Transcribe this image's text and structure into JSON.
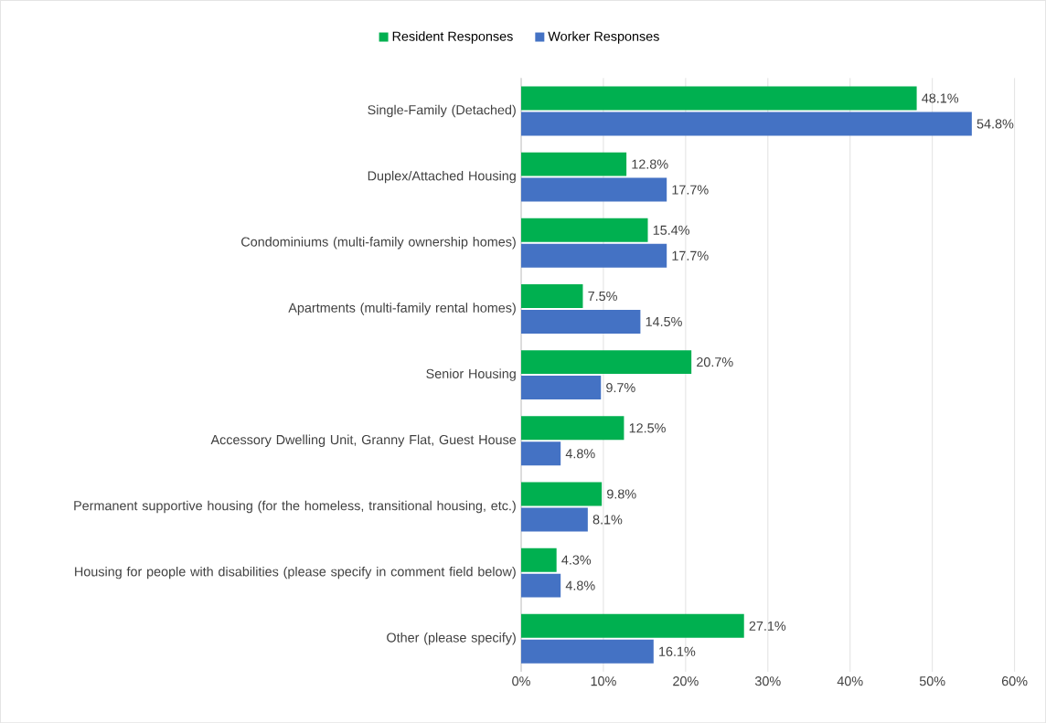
{
  "chart_data": {
    "type": "bar",
    "orientation": "horizontal",
    "categories": [
      "Single-Family (Detached)",
      "Duplex/Attached Housing",
      "Condominiums (multi-family ownership homes)",
      "Apartments (multi-family rental homes)",
      "Senior Housing",
      "Accessory Dwelling Unit, Granny Flat, Guest House",
      "Permanent supportive housing (for the homeless, transitional housing, etc.)",
      "Housing for people with disabilities (please specify in comment field below)",
      "Other (please specify)"
    ],
    "series": [
      {
        "name": "Resident Responses",
        "color": "#00b050",
        "values": [
          48.1,
          12.8,
          15.4,
          7.5,
          20.7,
          12.5,
          9.8,
          4.3,
          27.1
        ],
        "value_labels": [
          "48.1%",
          "12.8%",
          "15.4%",
          "7.5%",
          "20.7%",
          "12.5%",
          "9.8%",
          "4.3%",
          "27.1%"
        ]
      },
      {
        "name": "Worker Responses",
        "color": "#4472c4",
        "values": [
          54.8,
          17.7,
          17.7,
          14.5,
          9.7,
          4.8,
          8.1,
          4.8,
          16.1
        ],
        "value_labels": [
          "54.8%",
          "17.7%",
          "17.7%",
          "14.5%",
          "9.7%",
          "4.8%",
          "8.1%",
          "4.8%",
          "16.1%"
        ]
      }
    ],
    "xlim": [
      0,
      60
    ],
    "xticks": [
      {
        "value": 0,
        "label": "0%"
      },
      {
        "value": 10,
        "label": "10%"
      },
      {
        "value": 20,
        "label": "20%"
      },
      {
        "value": 30,
        "label": "30%"
      },
      {
        "value": 40,
        "label": "40%"
      },
      {
        "value": 50,
        "label": "50%"
      },
      {
        "value": 60,
        "label": "60%"
      }
    ],
    "grid": "x",
    "legend": "top"
  }
}
